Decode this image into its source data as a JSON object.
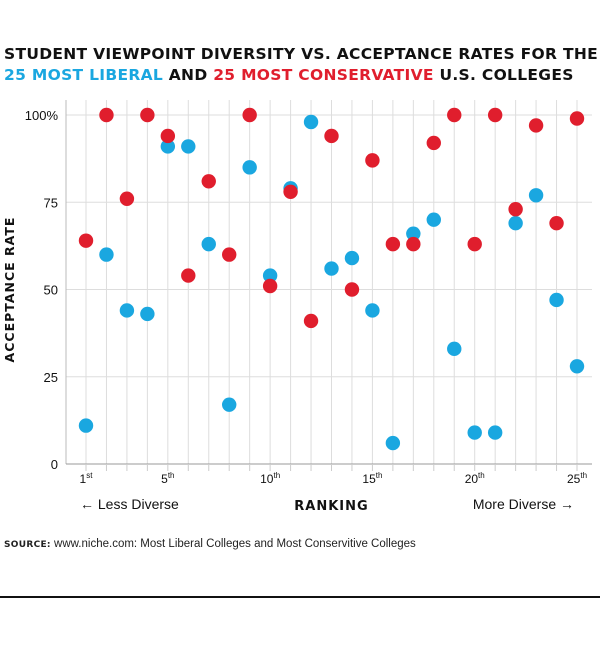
{
  "title": {
    "line1": "STUDENT VIEWPOINT DIVERSITY VS. ACCEPTANCE RATES FOR THE",
    "liberal": "25 MOST LIBERAL",
    "and": "AND",
    "conservative": "25 MOST CONSERVATIVE",
    "tail": "U.S. COLLEGES"
  },
  "colors": {
    "liberal": "#1aa7e0",
    "conservative": "#e01e2d"
  },
  "source": {
    "label": "SOURCE:",
    "text": "www.niche.com: Most Liberal Colleges and Most Conservitive Colleges"
  },
  "chart_data": {
    "type": "scatter",
    "title": "STUDENT VIEWPOINT DIVERSITY VS. ACCEPTANCE RATES FOR THE 25 MOST LIBERAL AND 25 MOST CONSERVATIVE U.S. COLLEGES",
    "xlabel": "RANKING",
    "ylabel": "ACCEPTANCE RATE",
    "x_left_note": "← Less Diverse",
    "x_right_note": "More Diverse →",
    "xlim": [
      1,
      25
    ],
    "ylim": [
      0,
      100
    ],
    "yticks": [
      {
        "value": 0,
        "label": "0"
      },
      {
        "value": 25,
        "label": "25"
      },
      {
        "value": 50,
        "label": "50"
      },
      {
        "value": 75,
        "label": "75"
      },
      {
        "value": 100,
        "label": "100%"
      }
    ],
    "xticks": [
      {
        "value": 1,
        "num": "1",
        "suffix": "st"
      },
      {
        "value": 5,
        "num": "5",
        "suffix": "th"
      },
      {
        "value": 10,
        "num": "10",
        "suffix": "th"
      },
      {
        "value": 15,
        "num": "15",
        "suffix": "th"
      },
      {
        "value": 20,
        "num": "20",
        "suffix": "th"
      },
      {
        "value": 25,
        "num": "25",
        "suffix": "th"
      }
    ],
    "grid": true,
    "series": [
      {
        "name": "25 Most Liberal",
        "color": "#1aa7e0",
        "x": [
          1,
          2,
          3,
          4,
          5,
          6,
          7,
          8,
          9,
          10,
          11,
          12,
          13,
          14,
          15,
          16,
          17,
          18,
          19,
          20,
          21,
          22,
          23,
          24,
          25
        ],
        "y": [
          11,
          60,
          44,
          43,
          91,
          91,
          63,
          17,
          85,
          54,
          79,
          98,
          56,
          59,
          44,
          6,
          66,
          70,
          33,
          9,
          9,
          69,
          77,
          47,
          28
        ]
      },
      {
        "name": "25 Most Conservative",
        "color": "#e01e2d",
        "x": [
          1,
          2,
          3,
          4,
          5,
          6,
          7,
          8,
          9,
          10,
          11,
          12,
          13,
          14,
          15,
          16,
          17,
          18,
          19,
          20,
          21,
          22,
          23,
          24,
          25
        ],
        "y": [
          64,
          100,
          76,
          100,
          94,
          54,
          81,
          60,
          100,
          51,
          78,
          41,
          94,
          50,
          87,
          63,
          63,
          92,
          100,
          63,
          100,
          73,
          97,
          69,
          99
        ]
      }
    ]
  }
}
